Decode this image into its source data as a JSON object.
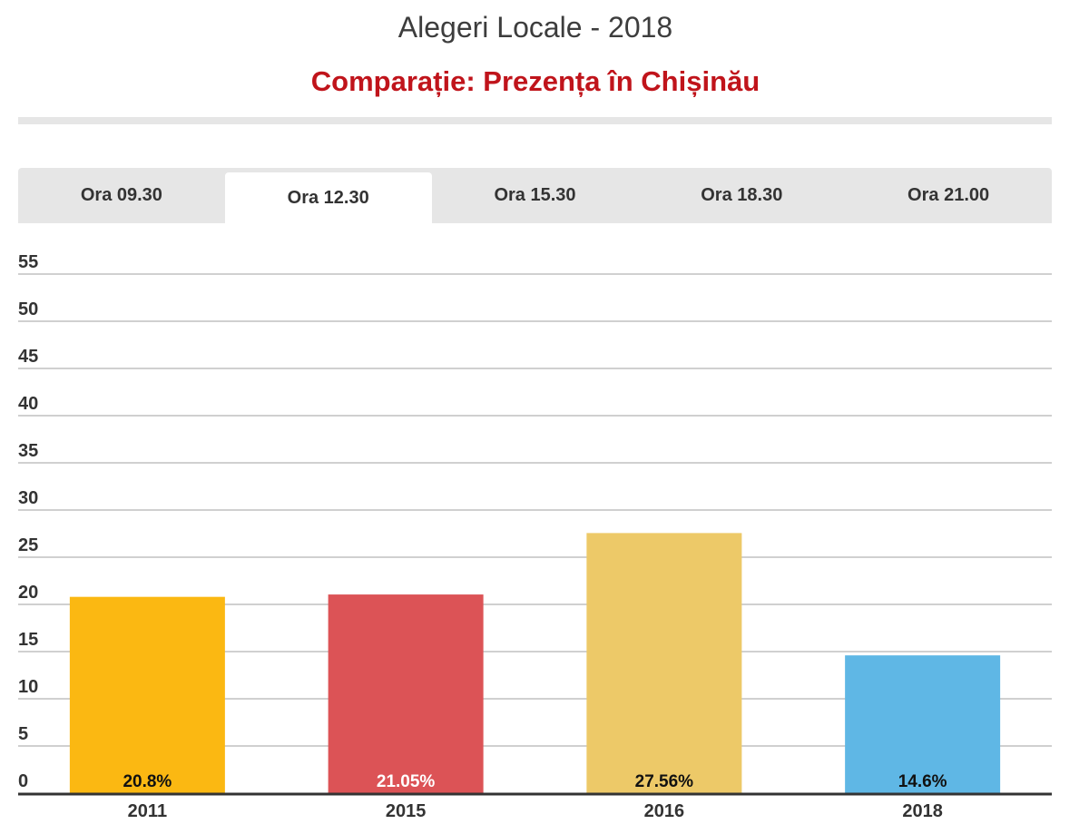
{
  "header": {
    "title": "Alegeri Locale - 2018",
    "subtitle": "Comparație: Prezența în Chișinău"
  },
  "tabs": [
    {
      "label": "Ora 09.30",
      "active": false
    },
    {
      "label": "Ora 12.30",
      "active": true
    },
    {
      "label": "Ora 15.30",
      "active": false
    },
    {
      "label": "Ora 18.30",
      "active": false
    },
    {
      "label": "Ora 21.00",
      "active": false
    }
  ],
  "chart_data": {
    "type": "bar",
    "categories": [
      "2011",
      "2015",
      "2016",
      "2018"
    ],
    "values": [
      20.8,
      21.05,
      27.56,
      14.6
    ],
    "data_labels": [
      "20.8%",
      "21.05%",
      "27.56%",
      "14.6%"
    ],
    "colors": [
      "#fbb812",
      "#dc5356",
      "#edc968",
      "#5fb7e5"
    ],
    "label_colors": [
      "#111111",
      "#ffffff",
      "#111111",
      "#111111"
    ],
    "ylim": [
      0,
      55
    ],
    "yticks": [
      0,
      5,
      10,
      15,
      20,
      25,
      30,
      35,
      40,
      45,
      50,
      55
    ],
    "grid": true,
    "title": "",
    "xlabel": "",
    "ylabel": ""
  }
}
